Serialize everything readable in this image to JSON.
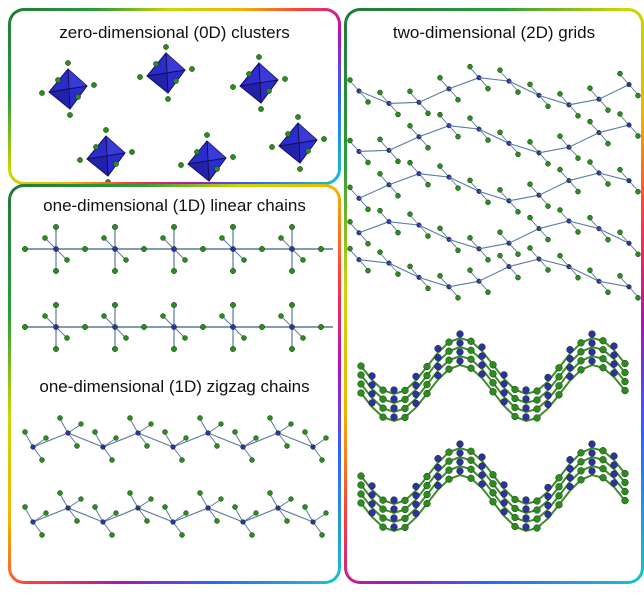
{
  "panels": {
    "zero_d": {
      "title": "zero-dimensional (0D) clusters"
    },
    "one_d_linear": {
      "title": "one-dimensional (1D) linear chains"
    },
    "one_d_zigzag": {
      "title": "one-dimensional (1D) zigzag chains"
    },
    "two_d": {
      "title": "two-dimensional (2D) grids"
    }
  },
  "colors": {
    "metal": "#2f2fa6",
    "octahedron": "#2b2bd0",
    "halide": "#2e8b1f",
    "bond": "#5a7aa0",
    "title_text": "#111111"
  }
}
